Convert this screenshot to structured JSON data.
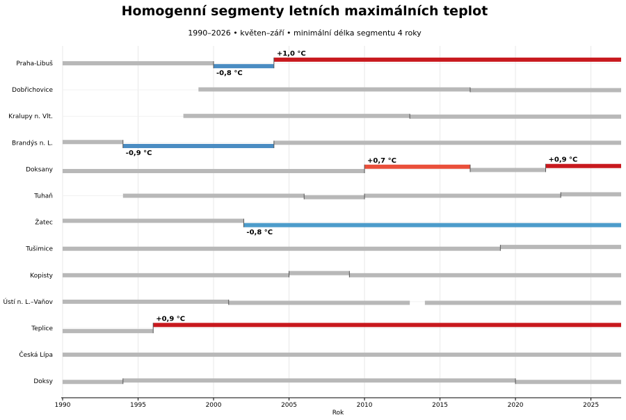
{
  "chart_data": {
    "type": "segments",
    "title": "Homogenní segmenty letních maximálních teplot",
    "subtitle": "1990–2026 • květen–září • minimální délka segmentu 4 roky",
    "xlabel": "Rok",
    "xlim": [
      1990,
      2027
    ],
    "xticks": [
      1990,
      1995,
      2000,
      2005,
      2010,
      2015,
      2020,
      2025
    ],
    "grid": true,
    "colors": {
      "neutral": "#b8b8b8",
      "warm_strong": "#c8191e",
      "warm_light": "#ea4f3a",
      "cool": "#4a8cc2",
      "cool_light": "#4d9ccb"
    },
    "stations": [
      {
        "name": "Praha-Libuš",
        "segments": [
          {
            "start": 1990,
            "end": 2000,
            "level": 0
          },
          {
            "start": 2000,
            "end": 2004,
            "level": -0.8,
            "label": "-0,8 °C",
            "color": "cool"
          },
          {
            "start": 2004,
            "end": 2027,
            "level": 1.0,
            "label": "+1,0 °C",
            "color": "warm_strong"
          }
        ]
      },
      {
        "name": "Dobřichovice",
        "segments": [
          {
            "start": 1999,
            "end": 2017,
            "level": 0.1
          },
          {
            "start": 2017,
            "end": 2027,
            "level": -0.1
          }
        ]
      },
      {
        "name": "Kralupy n. Vlt.",
        "segments": [
          {
            "start": 1998,
            "end": 2013,
            "level": 0.1
          },
          {
            "start": 2013,
            "end": 2027,
            "level": -0.1
          }
        ]
      },
      {
        "name": "Brandýs n. L.",
        "segments": [
          {
            "start": 1990,
            "end": 1994,
            "level": 0.2
          },
          {
            "start": 1994,
            "end": 2004,
            "level": -0.9,
            "label": "-0,9 °C",
            "color": "cool"
          },
          {
            "start": 2004,
            "end": 2027,
            "level": 0
          }
        ]
      },
      {
        "name": "Doksany",
        "segments": [
          {
            "start": 1990,
            "end": 2010,
            "level": -0.5
          },
          {
            "start": 2010,
            "end": 2017,
            "level": 0.7,
            "label": "+0,7 °C",
            "color": "warm_light"
          },
          {
            "start": 2017,
            "end": 2022,
            "level": -0.2
          },
          {
            "start": 2022,
            "end": 2027,
            "level": 0.9,
            "label": "+0,9 °C",
            "color": "warm_strong"
          }
        ]
      },
      {
        "name": "Tuhaň",
        "segments": [
          {
            "start": 1994,
            "end": 2006,
            "level": 0
          },
          {
            "start": 2006,
            "end": 2010,
            "level": -0.4
          },
          {
            "start": 2010,
            "end": 2023,
            "level": 0
          },
          {
            "start": 2023,
            "end": 2027,
            "level": 0.4
          }
        ]
      },
      {
        "name": "Žatec",
        "segments": [
          {
            "start": 1990,
            "end": 2002,
            "level": 0.4
          },
          {
            "start": 2002,
            "end": 2027,
            "level": -0.8,
            "label": "-0,8 °C",
            "color": "cool_light"
          }
        ]
      },
      {
        "name": "Tušimice",
        "segments": [
          {
            "start": 1990,
            "end": 2019,
            "level": 0
          },
          {
            "start": 2019,
            "end": 2027,
            "level": 0.5
          }
        ]
      },
      {
        "name": "Kopisty",
        "segments": [
          {
            "start": 1990,
            "end": 2005,
            "level": 0
          },
          {
            "start": 2005,
            "end": 2009,
            "level": 0.6
          },
          {
            "start": 2009,
            "end": 2027,
            "level": 0
          }
        ]
      },
      {
        "name": "Ústí n. L.–Vaňov",
        "segments": [
          {
            "start": 1990,
            "end": 2001,
            "level": 0
          },
          {
            "start": 2001,
            "end": 2013,
            "level": -0.3
          },
          {
            "start": 2014,
            "end": 2027,
            "level": -0.3
          }
        ]
      },
      {
        "name": "Teplice",
        "segments": [
          {
            "start": 1990,
            "end": 1996,
            "level": -0.8
          },
          {
            "start": 1996,
            "end": 2027,
            "level": 0.9,
            "label": "+0,9 °C",
            "color": "warm_strong"
          }
        ]
      },
      {
        "name": "Česká Lípa",
        "segments": [
          {
            "start": 1990,
            "end": 2027,
            "level": 0
          }
        ]
      },
      {
        "name": "Doksy",
        "segments": [
          {
            "start": 1990,
            "end": 1994,
            "level": -0.2
          },
          {
            "start": 1994,
            "end": 2020,
            "level": 0.2
          },
          {
            "start": 2020,
            "end": 2027,
            "level": -0.2
          }
        ]
      }
    ]
  }
}
